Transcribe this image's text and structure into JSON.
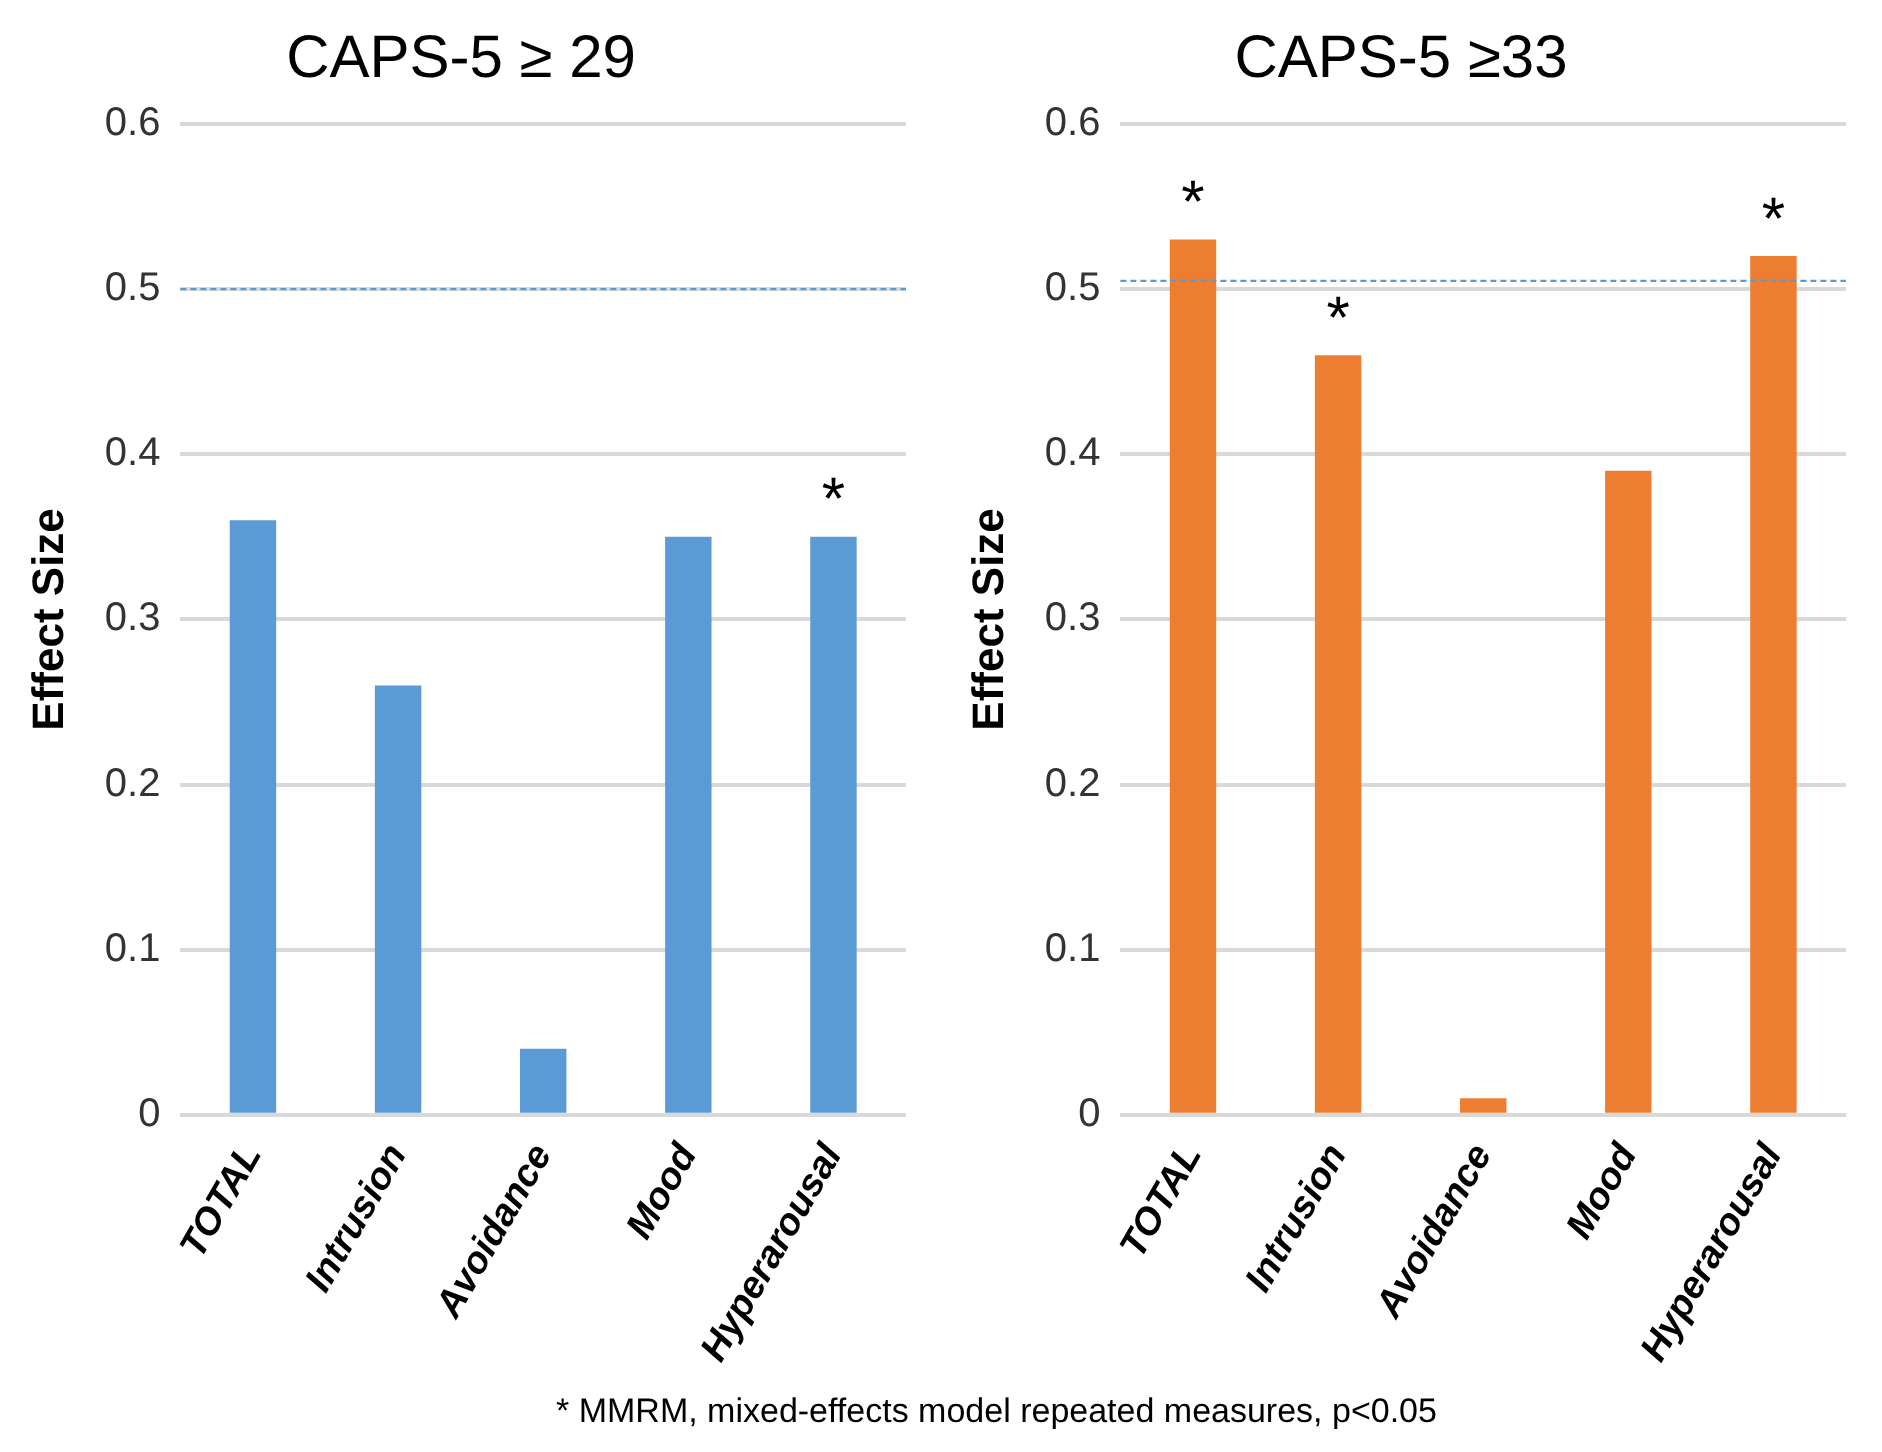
{
  "chart_data": [
    {
      "type": "bar",
      "title": "CAPS-5 ≥ 29",
      "ylabel": "Effect Size",
      "categories": [
        "TOTAL",
        "Intrusion",
        "Avoidance",
        "Mood",
        "Hyperarousal"
      ],
      "values": [
        0.36,
        0.26,
        0.04,
        0.35,
        0.35
      ],
      "color": "#5b9bd5",
      "ylim": [
        0,
        0.6
      ],
      "yticks": [
        {
          "value": 0,
          "label": "0"
        },
        0.1,
        0.2,
        0.3,
        0.4,
        0.5,
        0.6
      ],
      "grid": "y",
      "legend": false,
      "ref_lines": [
        {
          "axis": "y",
          "value": 0.5,
          "color": "#5b9bd5",
          "line_style": "dashed"
        }
      ],
      "annotations": [
        {
          "text": "*",
          "x": "Hyperarousal",
          "y": 0.35
        }
      ]
    },
    {
      "type": "bar",
      "title": "CAPS-5 ≥33",
      "ylabel": "Effect Size",
      "categories": [
        "TOTAL",
        "Intrusion",
        "Avoidance",
        "Mood",
        "Hyperarousal"
      ],
      "values": [
        0.53,
        0.46,
        0.01,
        0.39,
        0.52
      ],
      "color": "#ed7d31",
      "ylim": [
        0,
        0.6
      ],
      "yticks": [
        {
          "value": 0,
          "label": "0"
        },
        0.1,
        0.2,
        0.3,
        0.4,
        0.5,
        0.6
      ],
      "grid": "y",
      "legend": false,
      "ref_lines": [
        {
          "axis": "y",
          "value": 0.505,
          "color": "#5b9bd5",
          "line_style": "dashed"
        }
      ],
      "annotations": [
        {
          "text": "*",
          "x": "TOTAL",
          "y": 0.53
        },
        {
          "text": "*",
          "x": "Intrusion",
          "y": 0.46
        },
        {
          "text": "*",
          "x": "Hyperarousal",
          "y": 0.52
        },
        "* MMRM, mixed-effects model repeated measures, p<0.05"
      ]
    }
  ]
}
